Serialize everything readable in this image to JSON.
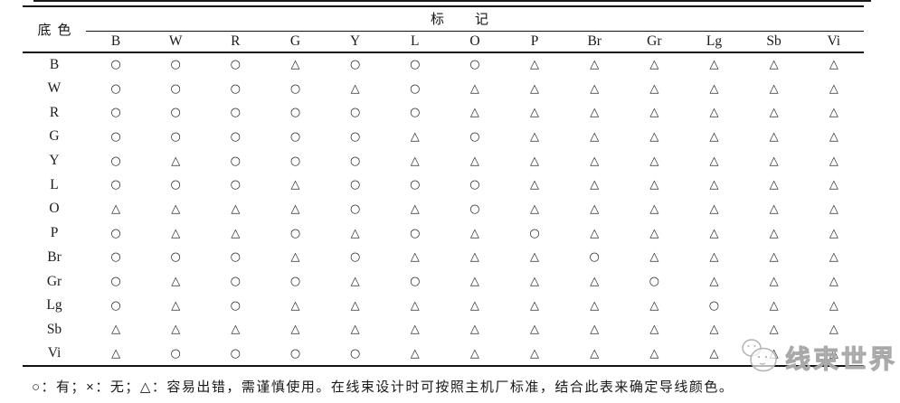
{
  "table": {
    "corner_label": "底色",
    "group_header": "标记",
    "columns": [
      "B",
      "W",
      "R",
      "G",
      "Y",
      "L",
      "O",
      "P",
      "Br",
      "Gr",
      "Lg",
      "Sb",
      "Vi"
    ],
    "rows": [
      {
        "label": "B",
        "cells": [
          "○",
          "○",
          "○",
          "△",
          "○",
          "○",
          "○",
          "△",
          "△",
          "△",
          "△",
          "△",
          "△"
        ]
      },
      {
        "label": "W",
        "cells": [
          "○",
          "○",
          "○",
          "○",
          "△",
          "○",
          "△",
          "△",
          "△",
          "△",
          "△",
          "△",
          "△"
        ]
      },
      {
        "label": "R",
        "cells": [
          "○",
          "○",
          "○",
          "○",
          "○",
          "○",
          "△",
          "△",
          "△",
          "△",
          "△",
          "△",
          "△"
        ]
      },
      {
        "label": "G",
        "cells": [
          "○",
          "○",
          "○",
          "○",
          "○",
          "△",
          "○",
          "△",
          "△",
          "△",
          "△",
          "△",
          "△"
        ]
      },
      {
        "label": "Y",
        "cells": [
          "○",
          "△",
          "○",
          "○",
          "○",
          "△",
          "△",
          "△",
          "△",
          "△",
          "△",
          "△",
          "△"
        ]
      },
      {
        "label": "L",
        "cells": [
          "○",
          "○",
          "○",
          "△",
          "○",
          "○",
          "○",
          "△",
          "△",
          "△",
          "△",
          "△",
          "△"
        ]
      },
      {
        "label": "O",
        "cells": [
          "△",
          "△",
          "△",
          "△",
          "○",
          "△",
          "○",
          "△",
          "△",
          "△",
          "△",
          "△",
          "△"
        ]
      },
      {
        "label": "P",
        "cells": [
          "○",
          "△",
          "△",
          "○",
          "△",
          "○",
          "△",
          "○",
          "△",
          "△",
          "△",
          "△",
          "△"
        ]
      },
      {
        "label": "Br",
        "cells": [
          "○",
          "○",
          "○",
          "△",
          "○",
          "△",
          "△",
          "△",
          "○",
          "△",
          "△",
          "△",
          "△"
        ]
      },
      {
        "label": "Gr",
        "cells": [
          "○",
          "△",
          "○",
          "○",
          "△",
          "○",
          "△",
          "△",
          "△",
          "○",
          "△",
          "△",
          "△"
        ]
      },
      {
        "label": "Lg",
        "cells": [
          "○",
          "△",
          "○",
          "△",
          "△",
          "△",
          "△",
          "△",
          "△",
          "△",
          "○",
          "△",
          "△"
        ]
      },
      {
        "label": "Sb",
        "cells": [
          "△",
          "△",
          "△",
          "△",
          "△",
          "△",
          "△",
          "△",
          "△",
          "△",
          "△",
          "△",
          "△"
        ]
      },
      {
        "label": "Vi",
        "cells": [
          "△",
          "○",
          "○",
          "○",
          "○",
          "△",
          "△",
          "△",
          "△",
          "△",
          "△",
          "△",
          "△"
        ]
      }
    ]
  },
  "footnote": "○：有；×：无；△：容易出错，需谨慎使用。在线束设计时可按照主机厂标准，结合此表来确定导线颜色。",
  "watermark": "线束世界"
}
